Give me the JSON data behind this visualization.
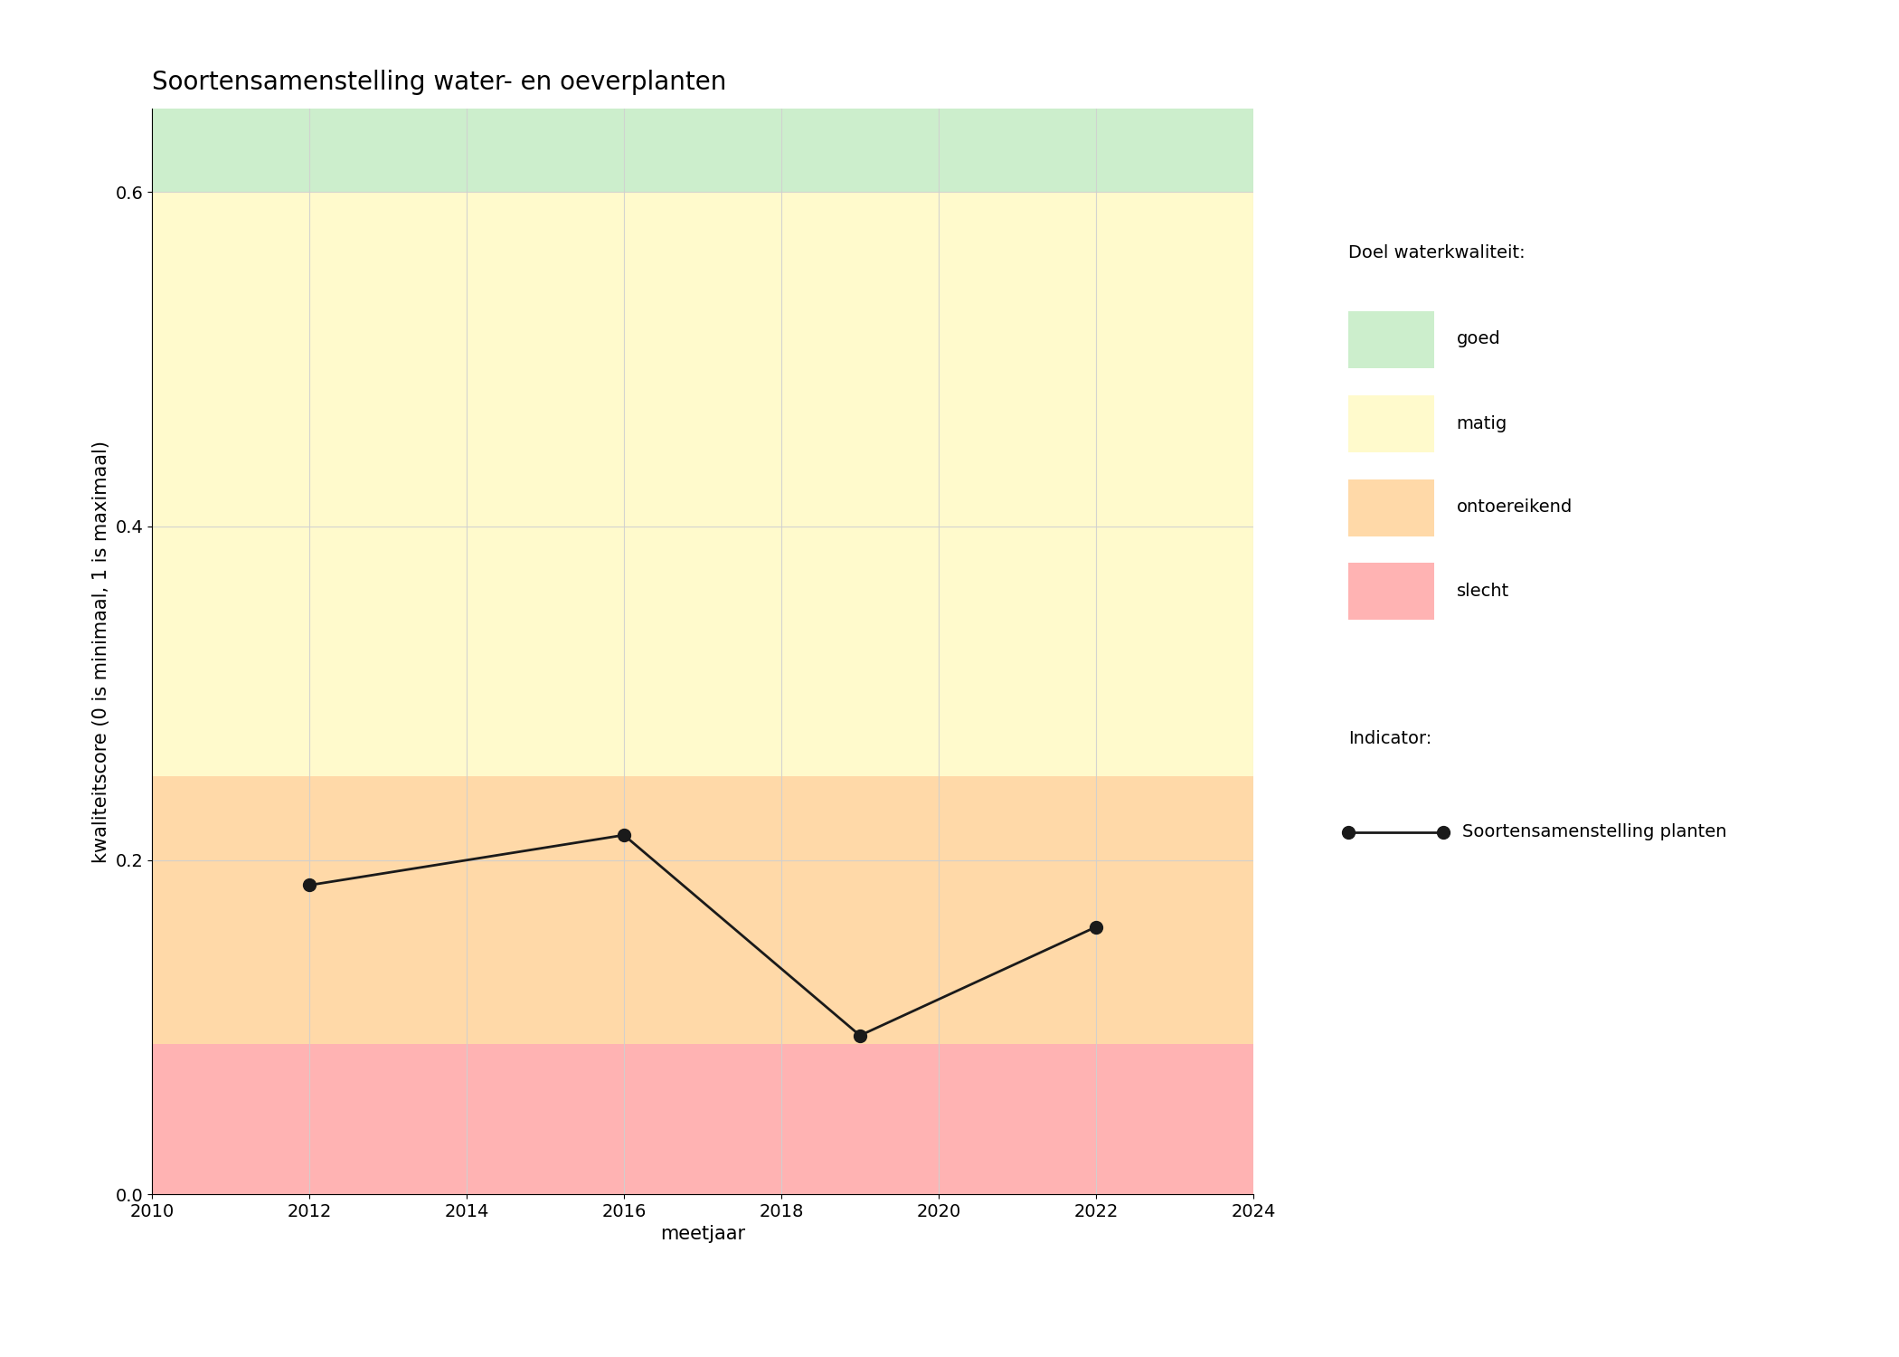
{
  "title": "Soortensamenstelling water- en oeverplanten",
  "xlabel": "meetjaar",
  "ylabel": "kwaliteitscore (0 is minimaal, 1 is maximaal)",
  "xlim": [
    2010,
    2024
  ],
  "ylim": [
    0.0,
    0.65
  ],
  "xticks": [
    2010,
    2012,
    2014,
    2016,
    2018,
    2020,
    2022,
    2024
  ],
  "yticks": [
    0.0,
    0.2,
    0.4,
    0.6
  ],
  "data_x": [
    2012,
    2016,
    2019,
    2022
  ],
  "data_y": [
    0.185,
    0.215,
    0.095,
    0.16
  ],
  "line_color": "#1a1a1a",
  "marker": "o",
  "marker_size": 10,
  "line_width": 2,
  "bg_color": "#ffffff",
  "bands": [
    {
      "ymin": 0.0,
      "ymax": 0.09,
      "color": "#FFB3B3",
      "label": "slecht"
    },
    {
      "ymin": 0.09,
      "ymax": 0.25,
      "color": "#FFD9A8",
      "label": "ontoereikend"
    },
    {
      "ymin": 0.25,
      "ymax": 0.6,
      "color": "#FFFACC",
      "label": "matig"
    },
    {
      "ymin": 0.6,
      "ymax": 1.0,
      "color": "#CCEECC",
      "label": "goed"
    }
  ],
  "legend_title_quality": "Doel waterkwaliteit:",
  "legend_title_indicator": "Indicator:",
  "legend_quality_colors": [
    "#CCEECC",
    "#FFFACC",
    "#FFD9A8",
    "#FFB3B3"
  ],
  "legend_quality_labels": [
    "goed",
    "matig",
    "ontoereikend",
    "slecht"
  ],
  "legend_indicator_label": "Soortensamenstelling planten",
  "grid_color": "#d0d0d0",
  "grid_alpha": 0.9,
  "title_fontsize": 20,
  "axis_label_fontsize": 15,
  "tick_fontsize": 14,
  "legend_fontsize": 14
}
